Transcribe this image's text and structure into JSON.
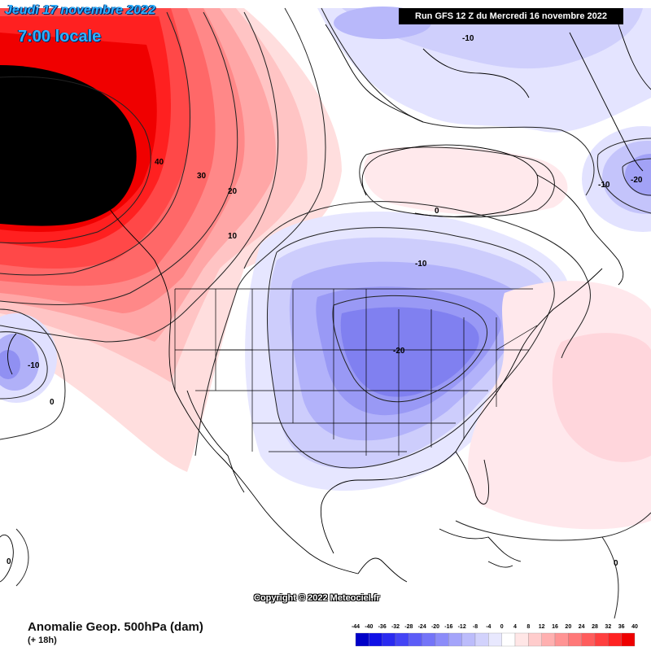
{
  "header": {
    "date_label": "Jeudi 17 novembre 2022",
    "time_label": "7:00 locale",
    "run_label": "Run GFS 12 Z du Mercredi 16 novembre 2022"
  },
  "footer": {
    "title": "Anomalie Geop. 500hPa (dam)",
    "subtitle": "(+ 18h)",
    "copyright": "Copyright © 2022 Meteociel.fr"
  },
  "contour_labels": {
    "l40": "40",
    "l30": "30",
    "l20": "20",
    "l10a": "10",
    "lm10_arctic": "-10",
    "l0_hudson": "0",
    "lm10_lakes": "-10",
    "lm20_center": "-20",
    "lm10_pacific": "-10",
    "l0_pacific": "0",
    "lm10_atl": "-10",
    "lm20_atl": "-20",
    "l0_sw": "0",
    "l0_east": "0"
  },
  "legend": {
    "ticks": [
      "-44",
      "-40",
      "-36",
      "-32",
      "-28",
      "-24",
      "-20",
      "-16",
      "-12",
      "-8",
      "-4",
      "0",
      "4",
      "8",
      "12",
      "16",
      "20",
      "24",
      "28",
      "32",
      "36",
      "40"
    ],
    "colors": [
      "#0000c8",
      "#1010e6",
      "#2a2af0",
      "#4444f5",
      "#5c5cf7",
      "#7474f8",
      "#8c8cf9",
      "#a4a4fa",
      "#bcbcfb",
      "#d2d2fc",
      "#e8e8fe",
      "#ffffff",
      "#ffe6e6",
      "#ffcccc",
      "#ffb0b0",
      "#ff9494",
      "#ff7878",
      "#ff5c5c",
      "#ff3f3f",
      "#ff2222",
      "#ee0000"
    ]
  }
}
